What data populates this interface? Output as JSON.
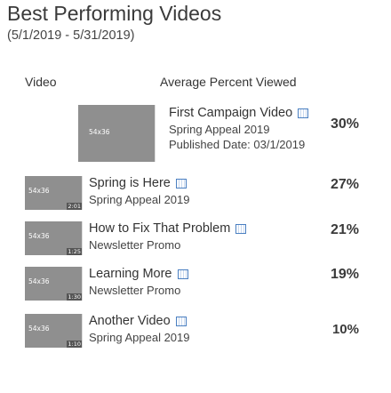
{
  "report": {
    "title": "Best Performing Videos",
    "date_range": "(5/1/2019 - 5/31/2019)"
  },
  "columns": {
    "video": "Video",
    "metric": "Average Percent Viewed"
  },
  "featured": {
    "title": "First Campaign Video",
    "campaign": "Spring Appeal 2019",
    "published": "Published Date: 03/1/2019",
    "thumb_size": "54x36",
    "percent": "30%",
    "icon": "video-file-icon"
  },
  "videos": [
    {
      "title": "Spring is Here",
      "campaign": "Spring Appeal 2019",
      "thumb_size": "54x36",
      "length": "2:01",
      "percent": "27%",
      "icon": "video-file-icon"
    },
    {
      "title": "How to Fix That Problem",
      "campaign": "Newsletter Promo",
      "thumb_size": "54x36",
      "length": "1:25",
      "percent": "21%",
      "icon": "video-file-icon"
    },
    {
      "title": "Learning More",
      "campaign": "Newsletter Promo",
      "thumb_size": "54x36",
      "length": "1:30",
      "percent": "19%",
      "icon": "video-file-icon"
    },
    {
      "title": "Another Video",
      "campaign": "Spring Appeal 2019",
      "thumb_size": "54x36",
      "length": "1:10",
      "percent": "10%",
      "icon": "video-file-icon"
    }
  ]
}
